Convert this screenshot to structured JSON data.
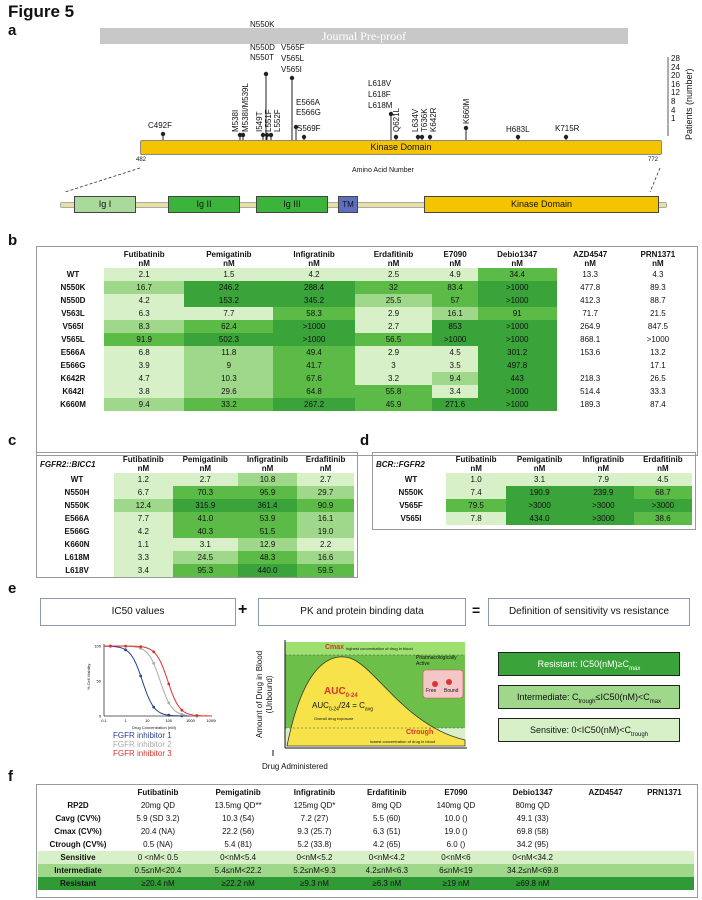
{
  "figure_title": "Figure 5",
  "watermark": "Journal Pre-proof",
  "panel_labels": {
    "a": "a",
    "b": "b",
    "c": "c",
    "d": "d",
    "e": "e",
    "f": "f"
  },
  "panel_a": {
    "kinase_label": "Kinase Domain",
    "axis_start": "482",
    "axis_end": "772",
    "axis_label": "Amino Acid Number",
    "patients_label": "Patients (number)",
    "patient_ticks": [
      "28",
      "24",
      "20",
      "16",
      "12",
      "8",
      "4",
      "1"
    ],
    "mutations": {
      "c492f": "C492F",
      "m538": "M538I",
      "m538i_m539l": "M538I/M539L",
      "i549t": "I549T",
      "l551f": "L551F",
      "l552f": "L552F",
      "n550k": "N550K",
      "n550_group": [
        "N550D",
        "N550T"
      ],
      "v565_group": [
        "V565F",
        "V565L",
        "V565I"
      ],
      "e566_group": [
        "E566A",
        "E566G"
      ],
      "s569f": "S569F",
      "l618_group": [
        "L618V",
        "L618F",
        "L618M"
      ],
      "q621l": "Q621L",
      "l634v": "L634V",
      "t636k": "T636K",
      "k642r": "K642R",
      "k660m": "K660M",
      "h683l": "H683L",
      "k715r": "K715R"
    },
    "domains": [
      "Ig I",
      "Ig II",
      "Ig III",
      "TM",
      "Kinase Domain"
    ],
    "colors": {
      "kinase": "#f5c400",
      "ig1": "#a9d99b",
      "ig2": "#3cb43c",
      "ig3": "#3cb43c",
      "tm": "#5d6fc0"
    }
  },
  "panel_b": {
    "headers": [
      "Futibatinib\nnM",
      "Pemigatinib\nnM",
      "Infigratinib\nnM",
      "Erdafitinib\nnM",
      "E7090\nnM",
      "Debio1347\nnM",
      "AZD4547\nnM",
      "PRN1371\nnM"
    ],
    "rows": [
      {
        "label": "WT",
        "cells": [
          "2.1",
          "1.5",
          "4.2",
          "2.5",
          "4.9",
          "34.4",
          "13.3",
          "4.3"
        ]
      },
      {
        "label": "N550K",
        "cells": [
          "16.7",
          "246.2",
          "288.4",
          "32",
          "83.4",
          ">1000",
          "477.8",
          "89.3"
        ]
      },
      {
        "label": "N550D",
        "cells": [
          "4.2",
          "153.2",
          "345.2",
          "25.5",
          "57",
          ">1000",
          "412.3",
          "88.7"
        ]
      },
      {
        "label": "V563L",
        "cells": [
          "6.3",
          "7.7",
          "58.3",
          "2.9",
          "16.1",
          "91",
          "71.7",
          "21.5"
        ]
      },
      {
        "label": "V565I",
        "cells": [
          "8.3",
          "62.4",
          ">1000",
          "2.7",
          "853",
          ">1000",
          "264.9",
          "847.5"
        ]
      },
      {
        "label": "V565L",
        "cells": [
          "91.9",
          "502.3",
          ">1000",
          "56.5",
          ">1000",
          ">1000",
          "868.1",
          ">1000"
        ]
      },
      {
        "label": "E566A",
        "cells": [
          "6.8",
          "11.8",
          "49.4",
          "2.9",
          "4.5",
          "301.2",
          "153.6",
          "13.2"
        ]
      },
      {
        "label": "E566G",
        "cells": [
          "3.9",
          "9",
          "41.7",
          "3",
          "3.5",
          "497.8",
          "",
          "17.1"
        ]
      },
      {
        "label": "K642R",
        "cells": [
          "4.7",
          "10.3",
          "67.6",
          "3.2",
          "9.4",
          "443",
          "218.3",
          "26.5"
        ]
      },
      {
        "label": "K642I",
        "cells": [
          "3.8",
          "29.6",
          "64.8",
          "55.8",
          "3.4",
          ">1000",
          "514.4",
          "33.3"
        ]
      },
      {
        "label": "K660M",
        "cells": [
          "9.4",
          "33.2",
          "267.2",
          "45.9",
          "271.6",
          ">1000",
          "189.3",
          "87.4"
        ]
      }
    ]
  },
  "panel_c": {
    "title": "FGFR2::BICC1",
    "headers": [
      "Futibatinib\nnM",
      "Pemigatinib\nnM",
      "Infigratinib\nnM",
      "Erdafitinib\nnM"
    ],
    "rows": [
      {
        "label": "WT",
        "cells": [
          "1.2",
          "2.7",
          "10.8",
          "2.7"
        ]
      },
      {
        "label": "N550H",
        "cells": [
          "6.7",
          "70.3",
          "95.9",
          "29.7"
        ]
      },
      {
        "label": "N550K",
        "cells": [
          "12.4",
          "315.9",
          "361.4",
          "90.9"
        ]
      },
      {
        "label": "E566A",
        "cells": [
          "7.7",
          "41.0",
          "53.9",
          "16.1"
        ]
      },
      {
        "label": "E566G",
        "cells": [
          "4.2",
          "40.3",
          "51.5",
          "19.0"
        ]
      },
      {
        "label": "K660N",
        "cells": [
          "1.1",
          "3.1",
          "12.9",
          "2.2"
        ]
      },
      {
        "label": "L618M",
        "cells": [
          "3.3",
          "24.5",
          "48.3",
          "16.6"
        ]
      },
      {
        "label": "L618V",
        "cells": [
          "3.4",
          "95.3",
          "440.0",
          "59.5"
        ]
      }
    ]
  },
  "panel_d": {
    "title": "BCR::FGFR2",
    "headers": [
      "Futibatinib\nnM",
      "Pemigatinib\nnM",
      "Infigratinib\nnM",
      "Erdafitinib\nnM"
    ],
    "rows": [
      {
        "label": "WT",
        "cells": [
          "1.0",
          "3.1",
          "7.9",
          "4.5"
        ]
      },
      {
        "label": "N550K",
        "cells": [
          "7.4",
          "190.9",
          "239.9",
          "68.7"
        ]
      },
      {
        "label": "V565F",
        "cells": [
          "79.5",
          ">3000",
          ">3000",
          ">3000"
        ]
      },
      {
        "label": "V565I",
        "cells": [
          "7.8",
          "434.0",
          ">3000",
          "38.6"
        ]
      }
    ]
  },
  "panel_e": {
    "box1": "IC50 values",
    "plus": "+",
    "box2": "PK  and protein binding data",
    "equals": "=",
    "box3": "Definition of sensitivity vs resistance",
    "curve_ylabel": "% Cell Viability",
    "curve_xlabel": "Drug Concentration (nM)",
    "curve_xticks": [
      "0.1",
      "1",
      "10",
      "100",
      "1000",
      "10000"
    ],
    "curve_yticks": [
      "100",
      "50",
      "0"
    ],
    "curve_legend": [
      "FGFR inhibitor 1",
      "FGFR inhibitor 2",
      "FGFR inhibitor 3"
    ],
    "curve_colors": [
      "#2b3f8f",
      "#aaaaaa",
      "#d9342b"
    ],
    "pk_ylabel": "Amount of Drug in Blood\n(Unbound)",
    "pk_xlabel": "Drug Administered",
    "cmax": "Cmax",
    "cmax_sub": "highest concentration of drug in blood",
    "pharm": "Pharmacologically\nActive",
    "auc": "AUC",
    "auc_sub": "0-24",
    "auc_eq": "AUC",
    "auc_eq_sub": "0-24",
    "auc_eq_rest": "/24 = C",
    "auc_eq_sub2": "avg",
    "overall": "Overall drug exposure",
    "free": "Free",
    "bound": "Bound",
    "ctrough": "Ctrough",
    "ctrough_sub": "lowest concentration of drug in blood",
    "resistant": "Resistant: IC50(nM)≥C",
    "resistant_sub": "max",
    "intermediate": "Intermediate: C",
    "intermediate_sub": "trough",
    "intermediate_mid": "≤IC50(nM)<C",
    "intermediate_sub2": "max",
    "sensitive": "Sensitive: 0<IC50(nM)<C",
    "sensitive_sub": "trough"
  },
  "panel_f": {
    "headers": [
      "Futibatinib",
      "Pemigatinib",
      "Infigratinib",
      "Erdafitinib",
      "E7090",
      "Debio1347",
      "AZD4547",
      "PRN1371"
    ],
    "rows": [
      {
        "label": "RP2D",
        "cells": [
          "20mg QD",
          "13.5mg QD**",
          "125mg QD*",
          "8mg QD",
          "140mg QD",
          "80mg QD",
          "",
          ""
        ]
      },
      {
        "label": "Cavg (CV%)",
        "cells": [
          "5.9 (SD 3.2)",
          "10.3 (54)",
          "7.2 (27)",
          "5.5 (60)",
          "10.0 ()",
          "49.1 (33)",
          "",
          ""
        ]
      },
      {
        "label": "Cmax (CV%)",
        "cells": [
          "20.4 (NA)",
          "22.2 (56)",
          "9.3 (25.7)",
          "6.3 (51)",
          "19.0 ()",
          "69.8 (58)",
          "",
          ""
        ]
      },
      {
        "label": "Ctrough (CV%)",
        "cells": [
          "0.5 (NA)",
          "5.4 (81)",
          "5.2 (33.8)",
          "4.2 (65)",
          "6.0 ()",
          "34.2 (95)",
          "",
          ""
        ]
      },
      {
        "label": "Sensitive",
        "cells": [
          "0 <nM< 0.5",
          "0<nM<5.4",
          "0<nM<5.2",
          "0<nM<4.2",
          "0<nM<6",
          "0<nM<34.2",
          "",
          ""
        ]
      },
      {
        "label": "Intermediate",
        "cells": [
          "0.5≤nM<20.4",
          "5.4≤nM<22.2",
          "5.2≤nM<9.3",
          "4.2≤nM<6.3",
          "6≤nM<19",
          "34.2≤nM<69.8",
          "",
          ""
        ]
      },
      {
        "label": "Resistant",
        "cells": [
          "≥20.4 nM",
          "≥22.2 nM",
          "≥9.3 nM",
          "≥6.3 nM",
          "≥19 nM",
          "≥69.8 nM",
          "",
          ""
        ]
      }
    ]
  }
}
